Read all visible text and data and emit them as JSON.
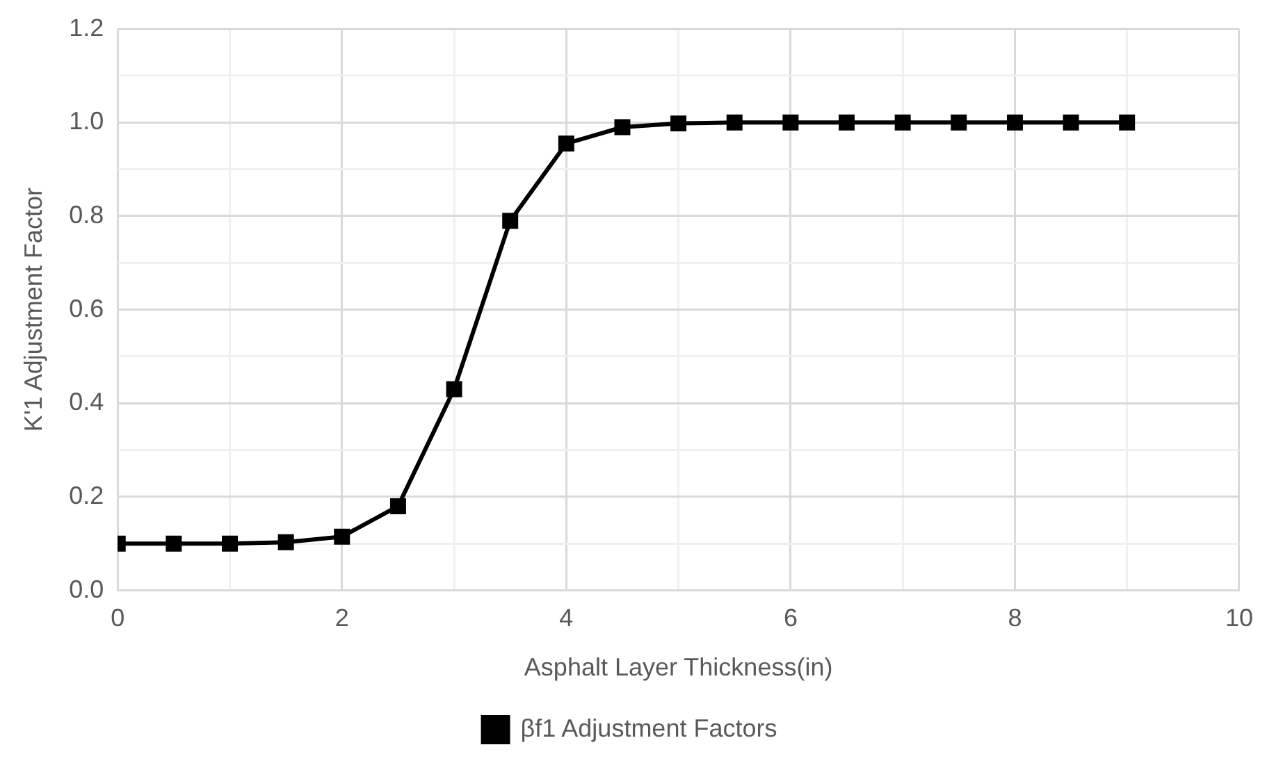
{
  "chart_data": {
    "type": "line",
    "xlabel": "Asphalt Layer Thickness(in)",
    "ylabel": "K'1 Adjustment Factor",
    "x": [
      0,
      0.5,
      1,
      1.5,
      2,
      2.5,
      3,
      3.5,
      4,
      4.5,
      5,
      5.5,
      6,
      6.5,
      7,
      7.5,
      8,
      8.5,
      9
    ],
    "series": [
      {
        "name": "βf1 Adjustment Factors",
        "color": "#000000",
        "values": [
          0.1,
          0.1,
          0.1,
          0.103,
          0.115,
          0.18,
          0.43,
          0.79,
          0.955,
          0.99,
          0.998,
          1,
          1,
          1,
          1,
          1,
          1,
          1,
          1
        ]
      }
    ],
    "xlim": [
      0,
      10
    ],
    "ylim": [
      0,
      1.2
    ],
    "xticks": [
      0,
      {
        "value": 1,
        "label": null
      },
      2,
      {
        "value": 3,
        "label": null
      },
      4,
      {
        "value": 5,
        "label": null
      },
      6,
      {
        "value": 7,
        "label": null
      },
      8,
      {
        "value": 9,
        "label": null
      },
      10
    ],
    "yticks": [
      {
        "value": 0,
        "label": "0.0"
      },
      {
        "value": 0.1,
        "label": null
      },
      0.2,
      {
        "value": 0.3,
        "label": null
      },
      0.4,
      {
        "value": 0.5,
        "label": null
      },
      0.6,
      {
        "value": 0.7,
        "label": null
      },
      0.8,
      {
        "value": 0.9,
        "label": null
      },
      {
        "value": 1,
        "label": "1.0"
      },
      {
        "value": 1.1,
        "label": null
      },
      1.2
    ],
    "grid": true,
    "legend": "bottom",
    "marker": "square",
    "line_style": "solid"
  }
}
